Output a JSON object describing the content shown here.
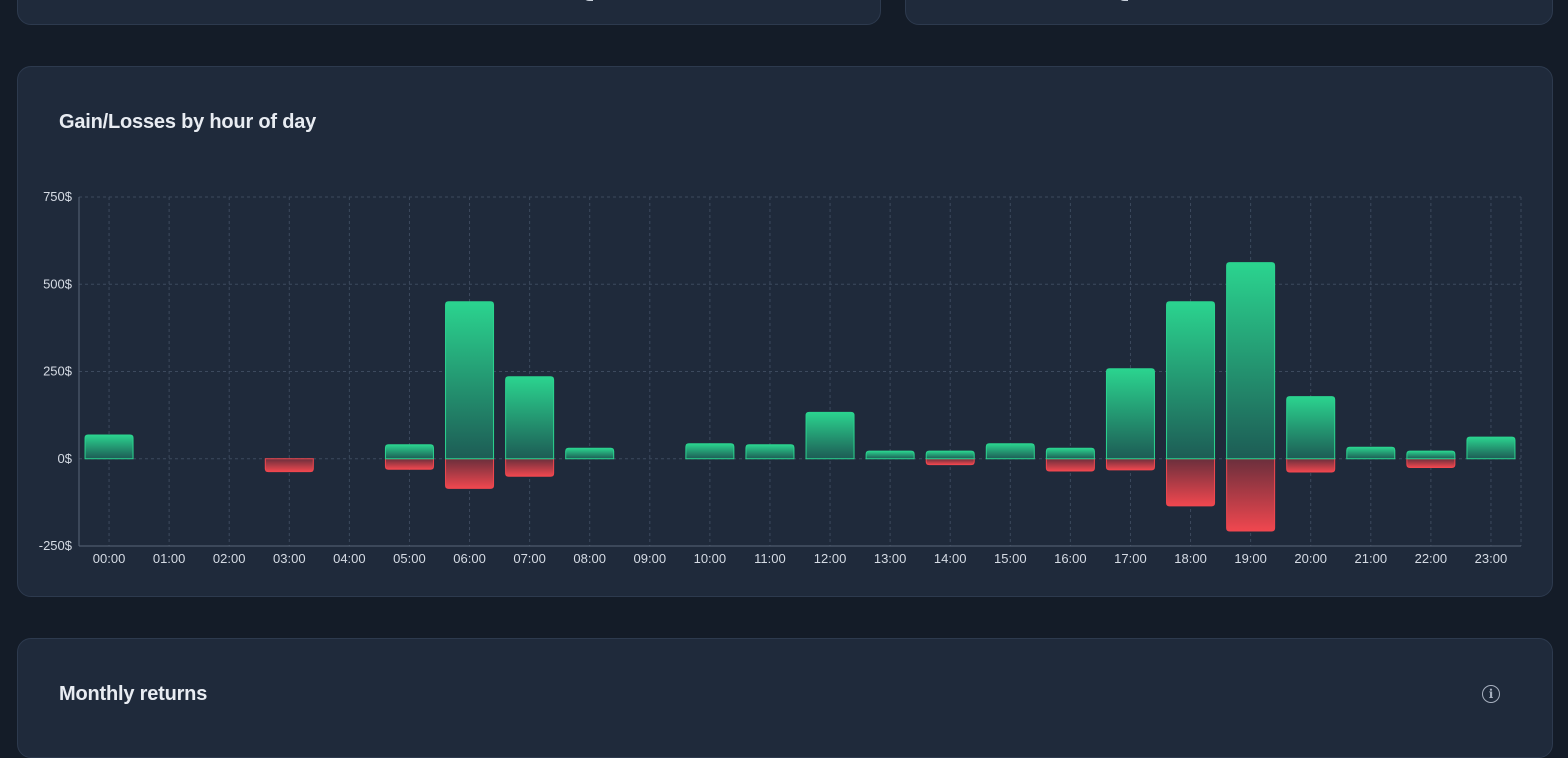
{
  "cards": {
    "hourly_title": "Gain/Losses by hour of day",
    "monthly_title": "Monthly returns",
    "info_glyph": "i"
  },
  "colors": {
    "gain": "#2bd48f",
    "loss": "#f0474f",
    "card_bg": "#1f2a3b",
    "grid": "#3d4a5e"
  },
  "chart_data": {
    "type": "bar",
    "title": "Gain/Losses by hour of day",
    "xlabel": "",
    "ylabel": "",
    "ylim": [
      -250,
      750
    ],
    "yticks": [
      -250,
      0,
      250,
      500,
      750
    ],
    "ytick_labels": [
      "-250$",
      "0$",
      "250$",
      "500$",
      "750$"
    ],
    "grid": true,
    "categories": [
      "00:00",
      "01:00",
      "02:00",
      "03:00",
      "04:00",
      "05:00",
      "06:00",
      "07:00",
      "08:00",
      "09:00",
      "10:00",
      "11:00",
      "12:00",
      "13:00",
      "14:00",
      "15:00",
      "16:00",
      "17:00",
      "18:00",
      "19:00",
      "20:00",
      "21:00",
      "22:00",
      "23:00"
    ],
    "series": [
      {
        "values": [
          68,
          0,
          0,
          0,
          0,
          40,
          450,
          235,
          30,
          0,
          43,
          40,
          133,
          22,
          22,
          43,
          30,
          258,
          450,
          562,
          178,
          33,
          22,
          62
        ]
      },
      {
        "values": [
          0,
          0,
          0,
          -37,
          0,
          -30,
          -85,
          -50,
          0,
          0,
          0,
          0,
          0,
          0,
          -17,
          0,
          -35,
          -32,
          -135,
          -207,
          -38,
          0,
          -25,
          0
        ]
      }
    ]
  }
}
